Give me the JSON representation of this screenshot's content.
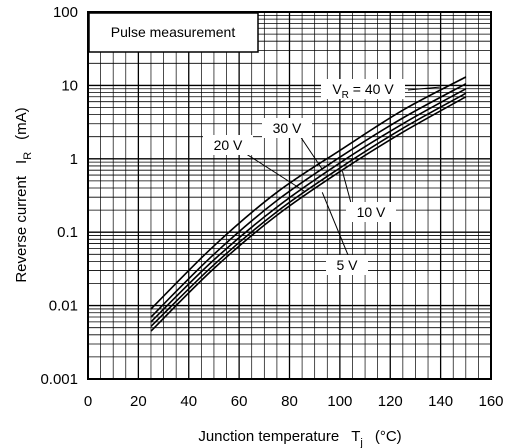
{
  "chart_data": {
    "type": "line",
    "x_scale": "linear",
    "y_scale": "log",
    "xlim": [
      0,
      160
    ],
    "ylim": [
      0.001,
      100
    ],
    "x_ticks": [
      "0",
      "20",
      "40",
      "60",
      "80",
      "100",
      "120",
      "140",
      "160"
    ],
    "y_ticks": [
      "0.001",
      "0.01",
      "0.1",
      "1",
      "10",
      "100"
    ],
    "grid": true,
    "xlabel": {
      "main": "Junction temperature",
      "symbol": "T",
      "subscript": "j",
      "unit": "(°C)"
    },
    "ylabel": {
      "main": "Reverse current",
      "symbol": "I",
      "subscript": "R",
      "unit": "(mA)"
    },
    "legend_box": "Pulse measurement",
    "series": [
      {
        "name": "VR = 40 V",
        "label": {
          "prefix": "V",
          "sub": "R",
          "rest": " = 40 V"
        },
        "x": [
          25,
          50,
          75,
          100,
          125,
          150
        ],
        "y": [
          0.009,
          0.065,
          0.35,
          1.3,
          4.6,
          13
        ]
      },
      {
        "name": "30 V",
        "label": {
          "prefix": "",
          "sub": "",
          "rest": "30 V"
        },
        "x": [
          25,
          50,
          75,
          100,
          125,
          150
        ],
        "y": [
          0.007,
          0.05,
          0.27,
          1.05,
          3.6,
          10.5
        ]
      },
      {
        "name": "20 V",
        "label": {
          "prefix": "",
          "sub": "",
          "rest": "20 V"
        },
        "x": [
          25,
          50,
          75,
          100,
          125,
          150
        ],
        "y": [
          0.006,
          0.042,
          0.22,
          0.88,
          3.0,
          9.0
        ]
      },
      {
        "name": "10 V",
        "label": {
          "prefix": "",
          "sub": "",
          "rest": "10 V"
        },
        "x": [
          25,
          50,
          75,
          100,
          125,
          150
        ],
        "y": [
          0.0052,
          0.036,
          0.19,
          0.75,
          2.6,
          7.8
        ]
      },
      {
        "name": "5 V",
        "label": {
          "prefix": "",
          "sub": "",
          "rest": "5 V"
        },
        "x": [
          25,
          50,
          75,
          100,
          125,
          150
        ],
        "y": [
          0.0045,
          0.032,
          0.17,
          0.67,
          2.3,
          7.0
        ]
      }
    ]
  }
}
